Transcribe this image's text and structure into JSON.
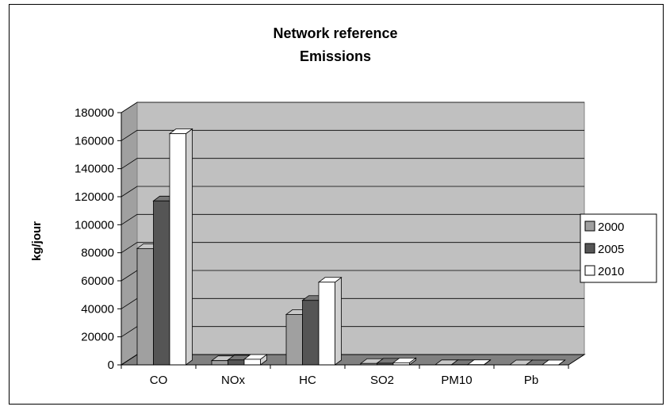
{
  "chart_data": {
    "type": "bar",
    "title_lines": [
      "Network reference",
      "Emissions"
    ],
    "ylabel": "kg/jour",
    "xlabel": "",
    "categories": [
      "CO",
      "NOx",
      "HC",
      "SO2",
      "PM10",
      "Pb"
    ],
    "series": [
      {
        "name": "2000",
        "color": "#a0a0a0",
        "values": [
          83000,
          3000,
          36000,
          1000,
          100,
          10
        ]
      },
      {
        "name": "2005",
        "color": "#555555",
        "values": [
          117000,
          3500,
          46000,
          1200,
          120,
          10
        ]
      },
      {
        "name": "2010",
        "color": "#ffffff",
        "values": [
          165000,
          4000,
          59000,
          1500,
          150,
          10
        ]
      }
    ],
    "ylim": [
      0,
      180000
    ],
    "yticks": [
      0,
      20000,
      40000,
      60000,
      80000,
      100000,
      120000,
      140000,
      160000,
      180000
    ],
    "grid": true,
    "legend_position": "right",
    "style": "3d-clustered-column",
    "plot_background": "#c0c0c0"
  }
}
